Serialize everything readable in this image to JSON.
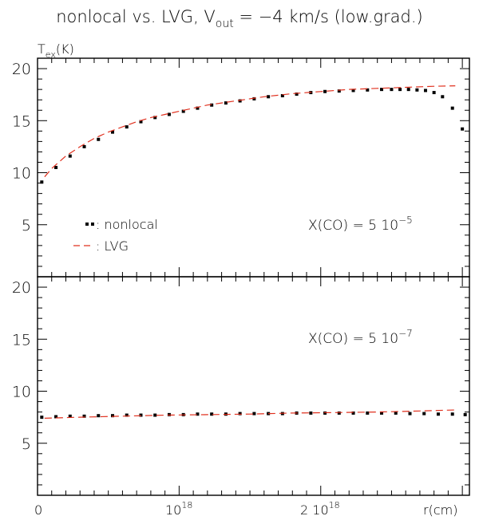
{
  "title": {
    "prefix": "nonlocal vs. LVG, V",
    "sub": "out",
    "suffix": " = −4 km/s (low.grad.)"
  },
  "y_axis_label": {
    "main": "T",
    "sub": "ex",
    "unit": "(K)"
  },
  "x_axis_label": "r(cm)",
  "x_tick_labels": [
    {
      "base": "0",
      "exp": ""
    },
    {
      "base": "10",
      "exp": "18"
    },
    {
      "base": "2 10",
      "exp": "18"
    }
  ],
  "legend": {
    "nonlocal_label": ": nonlocal",
    "lvg_label": ": LVG"
  },
  "colors": {
    "nonlocal": "#000000",
    "lvg": "#e0301e",
    "axes": "#000000"
  },
  "chart_data": [
    {
      "type": "line",
      "panel": "top",
      "annotation": {
        "base": "X(CO) = 5 10",
        "exp": "−5"
      },
      "x_unit": "cm",
      "xlim": [
        0,
        3.05e+18
      ],
      "ylim": [
        0,
        21
      ],
      "y_ticks": [
        5,
        10,
        15,
        20
      ],
      "x_ticks": [
        0,
        1e+18,
        2e+18
      ],
      "series": [
        {
          "name": "nonlocal",
          "style": "dotted-squares",
          "x": [
            3e+16,
            1.3e+17,
            2.3e+17,
            3.3e+17,
            4.3e+17,
            5.3e+17,
            6.3e+17,
            7.3e+17,
            8.3e+17,
            9.3e+17,
            1.03e+18,
            1.13e+18,
            1.23e+18,
            1.33e+18,
            1.43e+18,
            1.53e+18,
            1.63e+18,
            1.73e+18,
            1.83e+18,
            1.93e+18,
            2.03e+18,
            2.13e+18,
            2.23e+18,
            2.33e+18,
            2.43e+18,
            2.5e+18,
            2.56e+18,
            2.62e+18,
            2.68e+18,
            2.74e+18,
            2.8e+18,
            2.86e+18,
            2.93e+18,
            3e+18
          ],
          "y": [
            9.1,
            10.5,
            11.6,
            12.5,
            13.2,
            13.9,
            14.4,
            14.9,
            15.3,
            15.6,
            15.9,
            16.2,
            16.5,
            16.7,
            16.9,
            17.1,
            17.3,
            17.4,
            17.55,
            17.7,
            17.8,
            17.85,
            17.9,
            17.95,
            18.0,
            18.0,
            18.0,
            18.0,
            17.95,
            17.9,
            17.7,
            17.3,
            16.2,
            14.2
          ]
        },
        {
          "name": "LVG",
          "style": "dashed",
          "x": [
            5e+16,
            1e+17,
            2e+17,
            3e+17,
            4e+17,
            5e+17,
            6e+17,
            7e+17,
            8e+17,
            9e+17,
            1e+18,
            1.2e+18,
            1.4e+18,
            1.6e+18,
            1.8e+18,
            2e+18,
            2.2e+18,
            2.4e+18,
            2.6e+18,
            2.8e+18,
            2.95e+18
          ],
          "y": [
            9.6,
            10.4,
            11.6,
            12.5,
            13.3,
            13.9,
            14.4,
            14.9,
            15.3,
            15.6,
            15.9,
            16.5,
            16.9,
            17.3,
            17.6,
            17.8,
            18.0,
            18.1,
            18.2,
            18.3,
            18.35
          ]
        }
      ]
    },
    {
      "type": "line",
      "panel": "bottom",
      "annotation": {
        "base": "X(CO) = 5 10",
        "exp": "−7"
      },
      "x_unit": "cm",
      "xlim": [
        0,
        3.05e+18
      ],
      "ylim": [
        0,
        21
      ],
      "y_ticks": [
        5,
        10,
        15,
        20
      ],
      "x_ticks": [
        0,
        1e+18,
        2e+18
      ],
      "series": [
        {
          "name": "nonlocal",
          "style": "dotted-squares",
          "x": [
            3e+16,
            1.3e+17,
            2.3e+17,
            3.3e+17,
            4.3e+17,
            5.3e+17,
            6.3e+17,
            7.3e+17,
            8.3e+17,
            9.3e+17,
            1.03e+18,
            1.13e+18,
            1.23e+18,
            1.33e+18,
            1.43e+18,
            1.53e+18,
            1.63e+18,
            1.73e+18,
            1.83e+18,
            1.93e+18,
            2.03e+18,
            2.13e+18,
            2.23e+18,
            2.33e+18,
            2.43e+18,
            2.53e+18,
            2.63e+18,
            2.73e+18,
            2.83e+18,
            2.93e+18,
            3.02e+18
          ],
          "y": [
            7.5,
            7.55,
            7.6,
            7.6,
            7.65,
            7.65,
            7.7,
            7.7,
            7.7,
            7.75,
            7.75,
            7.8,
            7.8,
            7.8,
            7.85,
            7.85,
            7.85,
            7.85,
            7.9,
            7.9,
            7.9,
            7.9,
            7.9,
            7.9,
            7.9,
            7.9,
            7.85,
            7.85,
            7.8,
            7.8,
            7.75
          ]
        },
        {
          "name": "LVG",
          "style": "dashed",
          "x": [
            5e+16,
            3e+17,
            6e+17,
            9e+17,
            1.2e+18,
            1.5e+18,
            1.8e+18,
            2.1e+18,
            2.4e+18,
            2.7e+18,
            2.95e+18
          ],
          "y": [
            7.4,
            7.5,
            7.6,
            7.7,
            7.75,
            7.8,
            7.9,
            7.95,
            8.0,
            8.1,
            8.2
          ]
        }
      ]
    }
  ]
}
